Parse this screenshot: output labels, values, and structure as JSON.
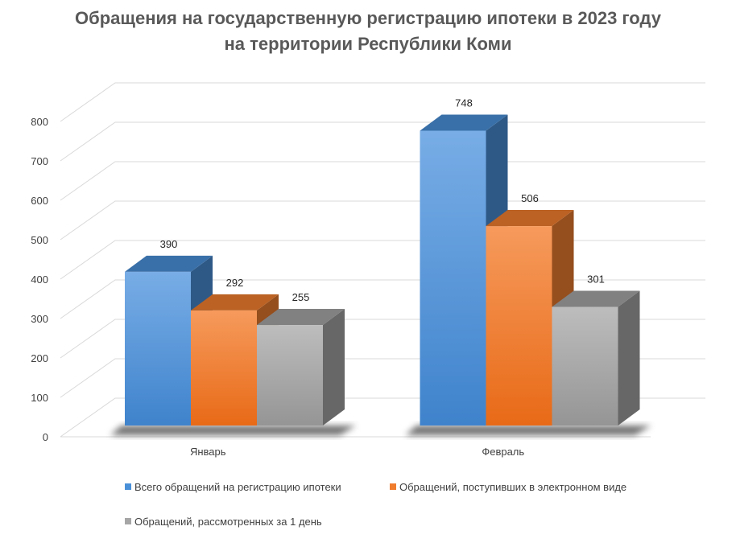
{
  "chart_data": {
    "type": "bar",
    "title": [
      "Обращения на государственную регистрацию ипотеки в 2023 году",
      "на территории Республики Коми"
    ],
    "categories": [
      "Январь",
      "Февраль"
    ],
    "series": [
      {
        "name": "Всего обращений на регистрацию ипотеки",
        "values": [
          390,
          748
        ],
        "color": "#4A90D9"
      },
      {
        "name": "Обращений, поступивших в электронном виде",
        "values": [
          292,
          506
        ],
        "color": "#F07D2E"
      },
      {
        "name": "Обращений, рассмотренных за 1 день",
        "values": [
          255,
          301
        ],
        "color": "#A6A6A6"
      }
    ],
    "ylim": [
      0,
      800
    ],
    "yticks": [
      0,
      100,
      200,
      300,
      400,
      500,
      600,
      700,
      800
    ],
    "grid": true,
    "legend_position": "bottom",
    "three_d": true
  }
}
